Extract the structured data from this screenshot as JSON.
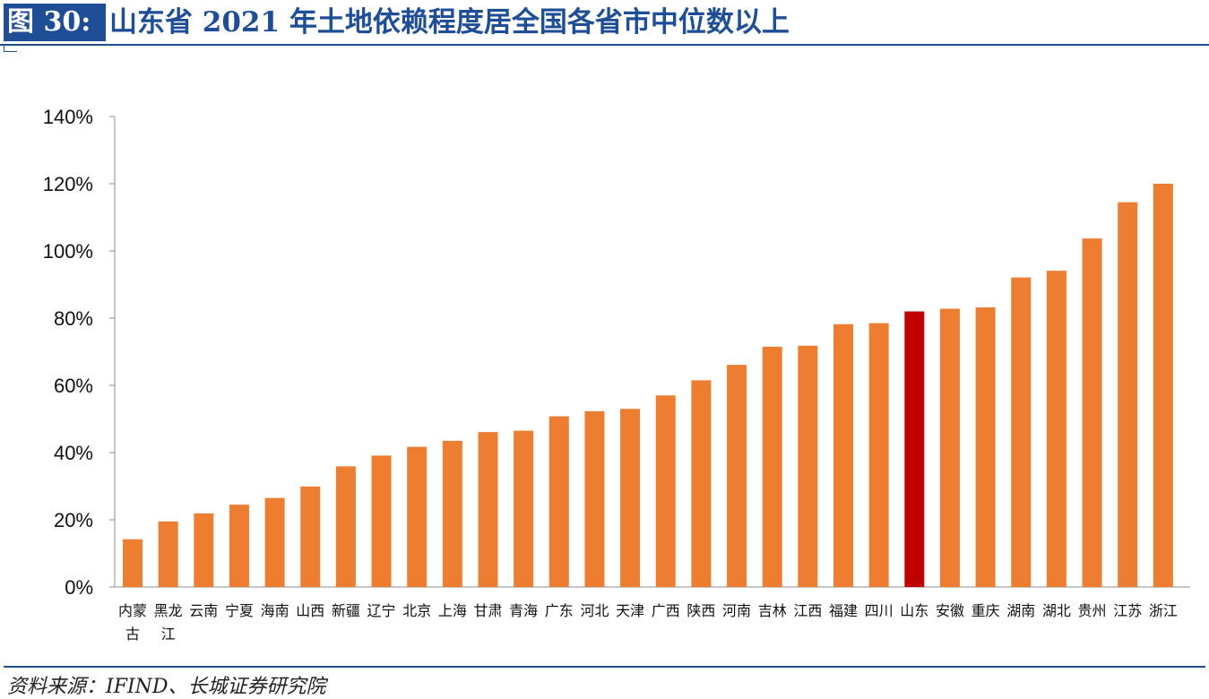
{
  "header": {
    "figure_label": "图 30:",
    "title": "山东省 2021 年土地依赖程度居全国各省市中位数以上"
  },
  "footer": {
    "source": "资料来源：IFIND、长城证券研究院"
  },
  "colors": {
    "brand_blue": "#1f4e96",
    "bar_default": "#ed7d31",
    "bar_highlight": "#c00000"
  },
  "chart_data": {
    "type": "bar",
    "title": "",
    "xlabel": "",
    "ylabel": "",
    "ylim": [
      0,
      140
    ],
    "yticks": [
      "0%",
      "20%",
      "40%",
      "60%",
      "80%",
      "100%",
      "120%",
      "140%"
    ],
    "y_unit": "%",
    "grid": false,
    "legend": "none",
    "categories": [
      "内蒙古",
      "黑龙江",
      "云南",
      "宁夏",
      "海南",
      "山西",
      "新疆",
      "辽宁",
      "北京",
      "上海",
      "甘肃",
      "青海",
      "广东",
      "河北",
      "天津",
      "广西",
      "陕西",
      "河南",
      "吉林",
      "江西",
      "福建",
      "四川",
      "山东",
      "安徽",
      "重庆",
      "湖南",
      "湖北",
      "贵州",
      "江苏",
      "浙江"
    ],
    "category_label_lines": [
      [
        "内蒙",
        "古"
      ],
      [
        "黑龙",
        "江"
      ],
      [
        "云南"
      ],
      [
        "宁夏"
      ],
      [
        "海南"
      ],
      [
        "山西"
      ],
      [
        "新疆"
      ],
      [
        "辽宁"
      ],
      [
        "北京"
      ],
      [
        "上海"
      ],
      [
        "甘肃"
      ],
      [
        "青海"
      ],
      [
        "广东"
      ],
      [
        "河北"
      ],
      [
        "天津"
      ],
      [
        "广西"
      ],
      [
        "陕西"
      ],
      [
        "河南"
      ],
      [
        "吉林"
      ],
      [
        "江西"
      ],
      [
        "福建"
      ],
      [
        "四川"
      ],
      [
        "山东"
      ],
      [
        "安徽"
      ],
      [
        "重庆"
      ],
      [
        "湖南"
      ],
      [
        "湖北"
      ],
      [
        "贵州"
      ],
      [
        "江苏"
      ],
      [
        "浙江"
      ]
    ],
    "values": [
      14.2,
      19.5,
      21.9,
      24.5,
      26.5,
      29.9,
      35.9,
      39.1,
      41.7,
      43.5,
      46.1,
      46.5,
      50.8,
      52.3,
      53.0,
      57.0,
      61.5,
      66.1,
      71.5,
      71.8,
      78.2,
      78.5,
      82.0,
      82.8,
      83.2,
      92.1,
      94.1,
      103.7,
      114.5,
      120.0
    ],
    "highlight": "山东"
  }
}
